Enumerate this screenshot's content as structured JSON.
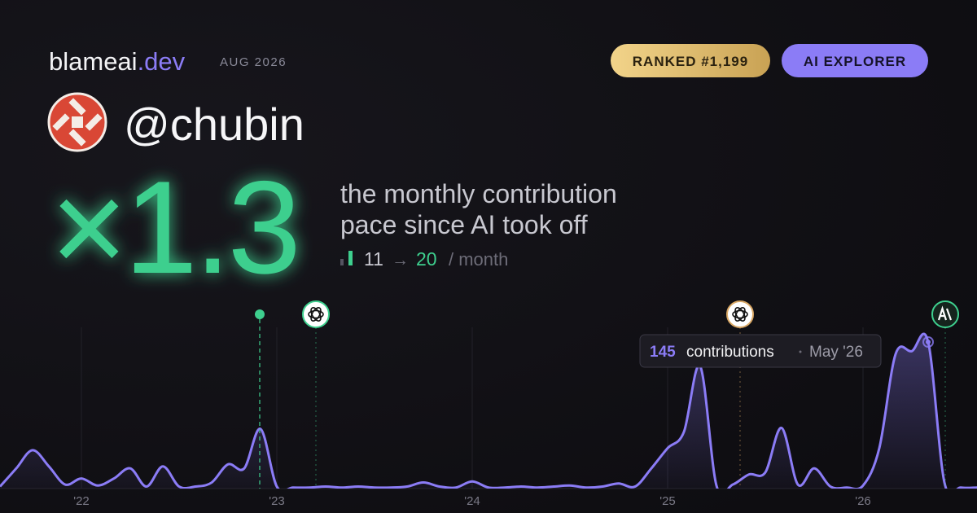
{
  "header": {
    "brand": "blameai",
    "brand_suffix": ".dev",
    "period": "AUG 2026",
    "badges": [
      "RANKED #1,199",
      "AI EXPLORER"
    ]
  },
  "profile": {
    "username": "@chubin"
  },
  "headline": {
    "multiplier": "×1.3",
    "description": [
      "the monthly contribution",
      "pace since AI took off"
    ],
    "stats": {
      "before": "11",
      "arrow": "→",
      "after": "20",
      "unit": "/ month"
    }
  },
  "chart_data": {
    "type": "area",
    "color": "#8b7cf6",
    "categories": [
      null,
      null,
      null,
      null,
      null,
      "'22",
      null,
      null,
      null,
      null,
      null,
      null,
      null,
      null,
      null,
      null,
      null,
      "'23",
      null,
      null,
      null,
      null,
      null,
      null,
      null,
      null,
      null,
      null,
      null,
      "'24",
      null,
      null,
      null,
      null,
      null,
      null,
      null,
      null,
      null,
      null,
      null,
      "'25",
      null,
      null,
      null,
      null,
      null,
      null,
      null,
      null,
      null,
      null,
      null,
      "'26",
      null,
      null,
      null,
      null,
      null,
      null,
      null
    ],
    "series": [
      {
        "name": "contributions",
        "color": "#8b7cf6",
        "values": [
          2,
          20,
          38,
          22,
          4,
          10,
          3,
          10,
          20,
          2,
          22,
          2,
          2,
          6,
          24,
          20,
          59,
          2,
          1,
          1,
          2,
          1,
          2,
          1,
          1,
          2,
          6,
          2,
          1,
          7,
          1,
          1,
          2,
          1,
          2,
          3,
          1,
          2,
          5,
          2,
          20,
          40,
          56,
          121,
          3,
          4,
          14,
          16,
          60,
          4,
          20,
          2,
          1,
          3,
          40,
          133,
          136,
          145,
          6,
          1,
          1
        ]
      }
    ],
    "tooltip": {
      "index": 57,
      "label": "contributions",
      "date": "May '26"
    }
  }
}
